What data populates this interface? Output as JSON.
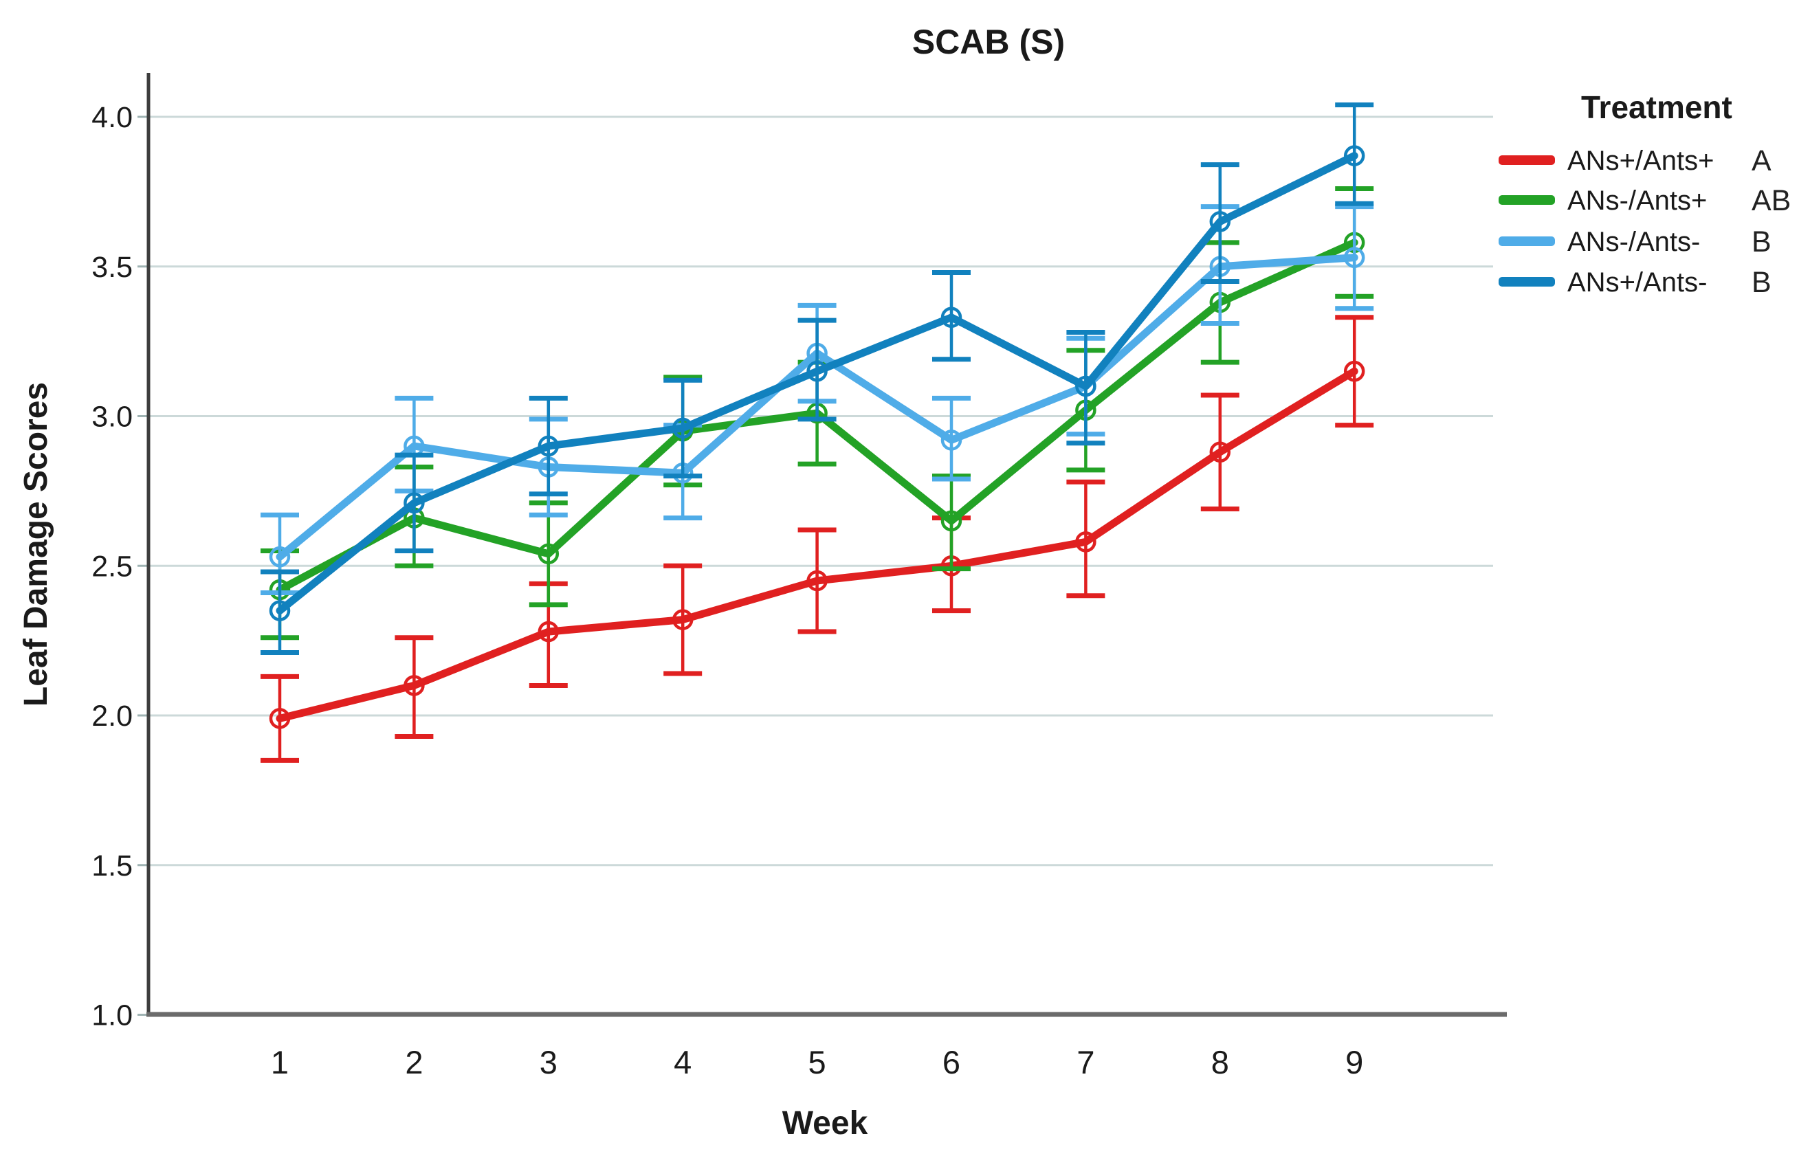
{
  "title": "SCAB (S)",
  "legend": {
    "title": "Treatment",
    "items": [
      {
        "label": "ANs+/Ants+",
        "letter": "A",
        "color": "#E02020"
      },
      {
        "label": "ANs-/Ants+",
        "letter": "AB",
        "color": "#23A226"
      },
      {
        "label": "ANs-/Ants-",
        "letter": "B",
        "color": "#4FACE8"
      },
      {
        "label": "ANs+/Ants-",
        "letter": "B",
        "color": "#1181BE"
      }
    ]
  },
  "chart_data": {
    "type": "line",
    "title": "SCAB (S)",
    "xlabel": "Week",
    "ylabel": "Leaf Damage Scores",
    "x": [
      1,
      2,
      3,
      4,
      5,
      6,
      7,
      8,
      9
    ],
    "xticklabels": [
      "1",
      "2",
      "3",
      "4",
      "5",
      "6",
      "7",
      "8",
      "9"
    ],
    "ylim": [
      1.0,
      4.15
    ],
    "yticks": [
      1.0,
      1.5,
      2.0,
      2.5,
      3.0,
      3.5,
      4.0
    ],
    "yticklabels": [
      "1.0",
      "1.5",
      "2.0",
      "2.5",
      "3.0",
      "3.5",
      "4.0"
    ],
    "grid": "horizontal",
    "legend_position": "right",
    "error_bars": true,
    "series": [
      {
        "name": "ANs+/Ants+",
        "letter": "A",
        "color": "#E02020",
        "values": [
          1.99,
          2.1,
          2.28,
          2.32,
          2.45,
          2.5,
          2.58,
          2.88,
          3.15
        ],
        "err_low": [
          1.85,
          1.93,
          2.1,
          2.14,
          2.28,
          2.35,
          2.4,
          2.69,
          2.97
        ],
        "err_high": [
          2.13,
          2.26,
          2.44,
          2.5,
          2.62,
          2.66,
          2.78,
          3.07,
          3.33
        ]
      },
      {
        "name": "ANs-/Ants+",
        "letter": "AB",
        "color": "#23A226",
        "values": [
          2.42,
          2.66,
          2.54,
          2.95,
          3.01,
          2.65,
          3.02,
          3.38,
          3.58
        ],
        "err_low": [
          2.26,
          2.5,
          2.37,
          2.77,
          2.84,
          2.49,
          2.82,
          3.18,
          3.4
        ],
        "err_high": [
          2.55,
          2.83,
          2.71,
          3.13,
          3.18,
          2.8,
          3.22,
          3.58,
          3.76
        ]
      },
      {
        "name": "ANs-/Ants-",
        "letter": "B",
        "color": "#4FACE8",
        "values": [
          2.53,
          2.9,
          2.83,
          2.81,
          3.21,
          2.92,
          3.1,
          3.5,
          3.53
        ],
        "err_low": [
          2.41,
          2.75,
          2.67,
          2.66,
          3.05,
          2.79,
          2.94,
          3.31,
          3.36
        ],
        "err_high": [
          2.67,
          3.06,
          2.99,
          2.97,
          3.37,
          3.06,
          3.26,
          3.7,
          3.7
        ]
      },
      {
        "name": "ANs+/Ants-",
        "letter": "B",
        "color": "#1181BE",
        "values": [
          2.35,
          2.71,
          2.9,
          2.96,
          3.15,
          3.33,
          3.1,
          3.65,
          3.87
        ],
        "err_low": [
          2.21,
          2.55,
          2.74,
          2.8,
          2.99,
          3.19,
          2.91,
          3.45,
          3.71
        ],
        "err_high": [
          2.48,
          2.87,
          3.06,
          3.12,
          3.32,
          3.48,
          3.28,
          3.84,
          4.04
        ]
      }
    ]
  }
}
